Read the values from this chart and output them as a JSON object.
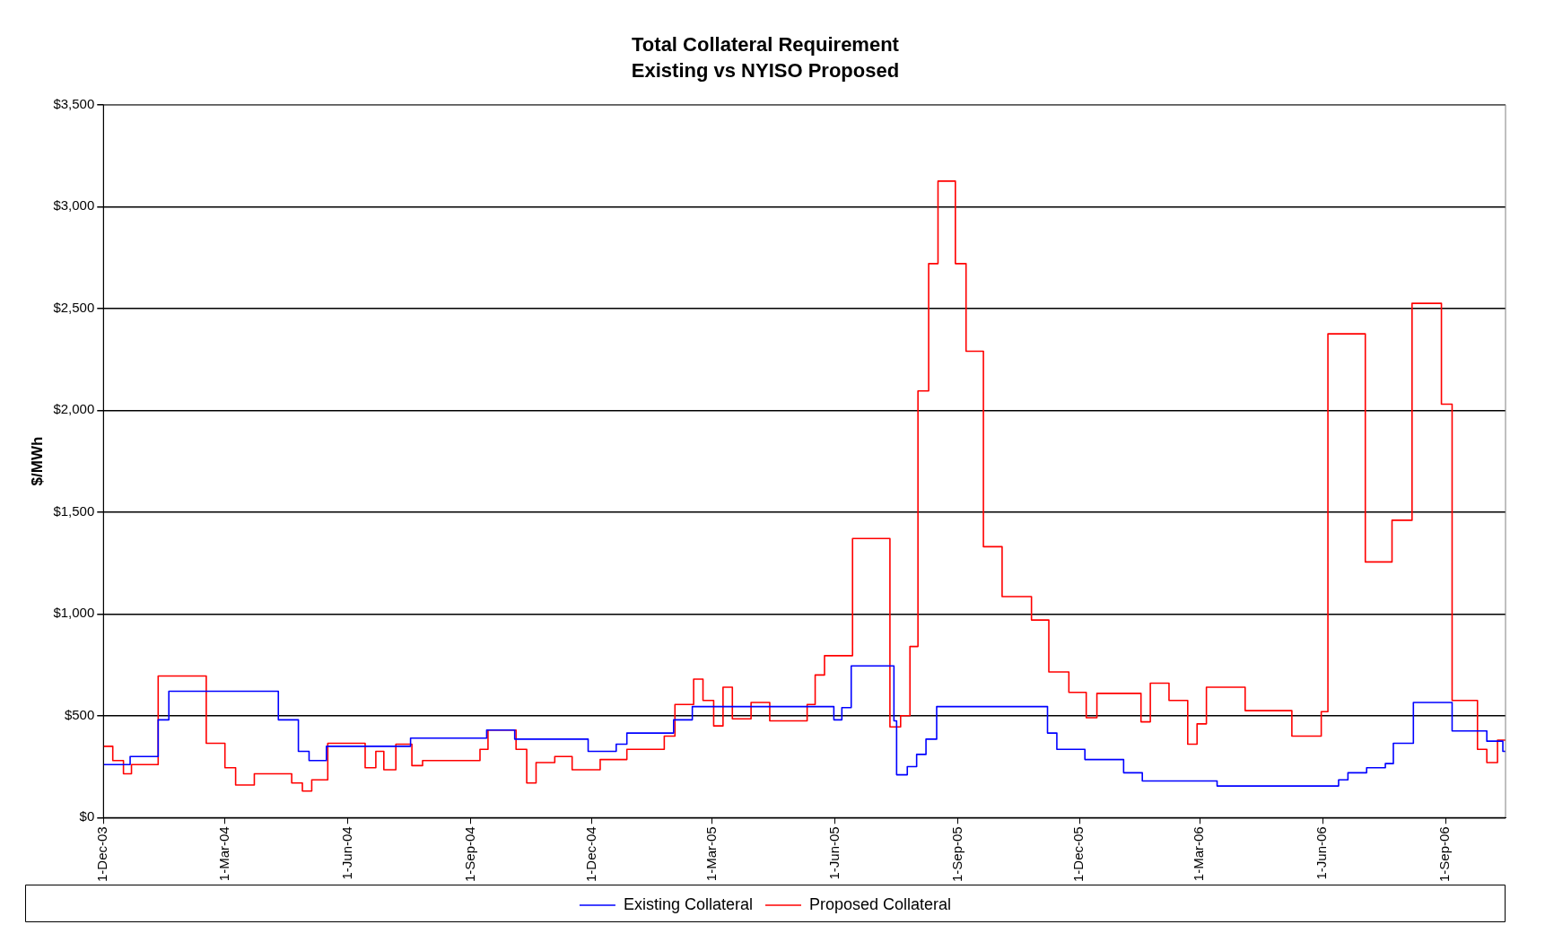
{
  "chart_data": {
    "type": "step",
    "title": "Total Collateral Requirement",
    "subtitle": "Existing vs NYISO Proposed",
    "ylabel": "$/MWh",
    "xlim": [
      "2003-12-01",
      "2006-10-16"
    ],
    "xticks": [
      {
        "value": "2003-12-01",
        "label": "1-Dec-03"
      },
      {
        "value": "2004-03-01",
        "label": "1-Mar-04"
      },
      {
        "value": "2004-06-01",
        "label": "1-Jun-04"
      },
      {
        "value": "2004-09-01",
        "label": "1-Sep-04"
      },
      {
        "value": "2004-12-01",
        "label": "1-Dec-04"
      },
      {
        "value": "2005-03-01",
        "label": "1-Mar-05"
      },
      {
        "value": "2005-06-01",
        "label": "1-Jun-05"
      },
      {
        "value": "2005-09-01",
        "label": "1-Sep-05"
      },
      {
        "value": "2005-12-01",
        "label": "1-Dec-05"
      },
      {
        "value": "2006-03-01",
        "label": "1-Mar-06"
      },
      {
        "value": "2006-06-01",
        "label": "1-Jun-06"
      },
      {
        "value": "2006-09-01",
        "label": "1-Sep-06"
      }
    ],
    "ylim": [
      0,
      3500
    ],
    "yticks": [
      {
        "value": 0,
        "label": "$0"
      },
      {
        "value": 500,
        "label": "$500"
      },
      {
        "value": 1000,
        "label": "$1,000"
      },
      {
        "value": 1500,
        "label": "$1,500"
      },
      {
        "value": 2000,
        "label": "$2,000"
      },
      {
        "value": 2500,
        "label": "$2,500"
      },
      {
        "value": 3000,
        "label": "$3,000"
      },
      {
        "value": 3500,
        "label": "$3,500"
      }
    ],
    "grid": "y",
    "legend": "bottom",
    "series": [
      {
        "name": "Existing Collateral",
        "color": "#0000ff",
        "x": [
          "2003-12-01",
          "2003-12-21",
          "2004-01-11",
          "2004-01-19",
          "2004-04-10",
          "2004-04-25",
          "2004-05-03",
          "2004-05-16",
          "2004-07-18",
          "2004-09-13",
          "2004-10-04",
          "2004-11-28",
          "2004-12-19",
          "2004-12-27",
          "2005-01-31",
          "2005-02-14",
          "2005-05-31",
          "2005-06-06",
          "2005-06-13",
          "2005-07-15",
          "2005-07-17",
          "2005-07-25",
          "2005-08-01",
          "2005-08-08",
          "2005-08-16",
          "2005-11-07",
          "2005-11-14",
          "2005-12-05",
          "2006-01-03",
          "2006-01-17",
          "2006-03-14",
          "2006-06-13",
          "2006-06-20",
          "2006-07-04",
          "2006-07-18",
          "2006-07-24",
          "2006-08-08",
          "2006-09-06",
          "2006-10-02",
          "2006-10-14",
          "2006-10-16"
        ],
        "values": [
          260,
          300,
          480,
          620,
          480,
          325,
          280,
          350,
          390,
          430,
          385,
          325,
          360,
          415,
          480,
          545,
          480,
          540,
          745,
          475,
          210,
          250,
          310,
          385,
          545,
          415,
          335,
          285,
          220,
          180,
          155,
          185,
          220,
          245,
          265,
          365,
          565,
          425,
          375,
          325,
          325
        ]
      },
      {
        "name": "Proposed Collateral",
        "color": "#ff0000",
        "x": [
          "2003-12-01",
          "2003-12-08",
          "2003-12-16",
          "2003-12-22",
          "2004-01-11",
          "2004-02-16",
          "2004-03-01",
          "2004-03-09",
          "2004-03-23",
          "2004-04-20",
          "2004-04-28",
          "2004-05-05",
          "2004-05-17",
          "2004-06-14",
          "2004-06-22",
          "2004-06-28",
          "2004-07-07",
          "2004-07-19",
          "2004-07-27",
          "2004-09-08",
          "2004-09-14",
          "2004-10-05",
          "2004-10-13",
          "2004-10-20",
          "2004-11-03",
          "2004-11-16",
          "2004-12-07",
          "2004-12-27",
          "2005-01-24",
          "2005-02-01",
          "2005-02-15",
          "2005-02-22",
          "2005-03-02",
          "2005-03-09",
          "2005-03-16",
          "2005-03-30",
          "2005-04-13",
          "2005-05-11",
          "2005-05-17",
          "2005-05-24",
          "2005-06-14",
          "2005-07-12",
          "2005-07-20",
          "2005-07-27",
          "2005-08-02",
          "2005-08-10",
          "2005-08-17",
          "2005-08-30",
          "2005-09-07",
          "2005-09-20",
          "2005-10-04",
          "2005-10-26",
          "2005-11-08",
          "2005-11-23",
          "2005-12-06",
          "2005-12-14",
          "2006-01-16",
          "2006-01-23",
          "2006-02-06",
          "2006-02-20",
          "2006-02-27",
          "2006-03-06",
          "2006-04-04",
          "2006-05-09",
          "2006-05-31",
          "2006-06-05",
          "2006-07-03",
          "2006-07-23",
          "2006-08-07",
          "2006-08-29",
          "2006-09-06",
          "2006-09-25",
          "2006-10-02",
          "2006-10-10",
          "2006-10-16"
        ],
        "values": [
          350,
          280,
          215,
          260,
          695,
          365,
          245,
          160,
          215,
          170,
          130,
          185,
          365,
          245,
          325,
          235,
          360,
          255,
          280,
          335,
          430,
          335,
          170,
          270,
          300,
          235,
          285,
          335,
          400,
          555,
          680,
          575,
          450,
          640,
          485,
          565,
          475,
          555,
          700,
          795,
          1370,
          445,
          500,
          840,
          2095,
          2720,
          3125,
          2720,
          2290,
          1330,
          1085,
          970,
          715,
          615,
          490,
          610,
          470,
          660,
          575,
          360,
          460,
          640,
          525,
          400,
          520,
          2375,
          1255,
          1460,
          2525,
          2030,
          575,
          335,
          270,
          380,
          380
        ]
      }
    ]
  }
}
